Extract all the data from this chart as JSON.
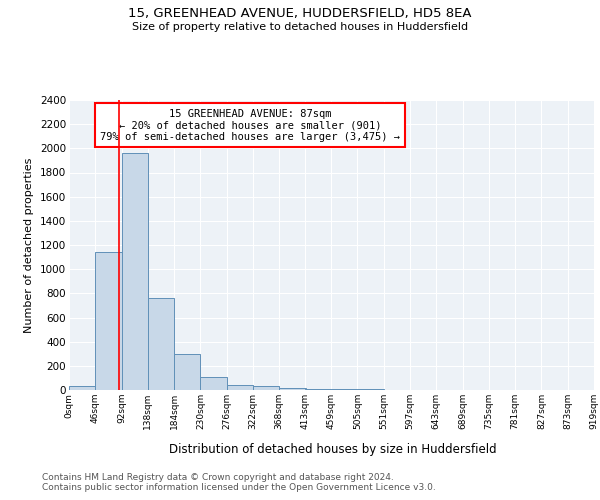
{
  "title1": "15, GREENHEAD AVENUE, HUDDERSFIELD, HD5 8EA",
  "title2": "Size of property relative to detached houses in Huddersfield",
  "xlabel": "Distribution of detached houses by size in Huddersfield",
  "ylabel": "Number of detached properties",
  "bin_edges": [
    0,
    46,
    92,
    138,
    184,
    230,
    276,
    322,
    368,
    413,
    459,
    505,
    551,
    597,
    643,
    689,
    735,
    781,
    827,
    873,
    919
  ],
  "bin_labels": [
    "0sqm",
    "46sqm",
    "92sqm",
    "138sqm",
    "184sqm",
    "230sqm",
    "276sqm",
    "322sqm",
    "368sqm",
    "413sqm",
    "459sqm",
    "505sqm",
    "551sqm",
    "597sqm",
    "643sqm",
    "689sqm",
    "735sqm",
    "781sqm",
    "827sqm",
    "873sqm",
    "919sqm"
  ],
  "bar_heights": [
    35,
    1140,
    1960,
    760,
    300,
    105,
    45,
    30,
    20,
    10,
    8,
    5,
    4,
    3,
    2,
    2,
    2,
    2,
    2,
    2
  ],
  "bar_color": "#c8d8e8",
  "bar_edge_color": "#6090b8",
  "property_line_x": 87,
  "annotation_text": "15 GREENHEAD AVENUE: 87sqm\n← 20% of detached houses are smaller (901)\n79% of semi-detached houses are larger (3,475) →",
  "annotation_box_color": "white",
  "annotation_box_edge_color": "red",
  "vline_color": "red",
  "ylim": [
    0,
    2400
  ],
  "yticks": [
    0,
    200,
    400,
    600,
    800,
    1000,
    1200,
    1400,
    1600,
    1800,
    2000,
    2200,
    2400
  ],
  "background_color": "#edf2f7",
  "grid_color": "white",
  "footer1": "Contains HM Land Registry data © Crown copyright and database right 2024.",
  "footer2": "Contains public sector information licensed under the Open Government Licence v3.0."
}
